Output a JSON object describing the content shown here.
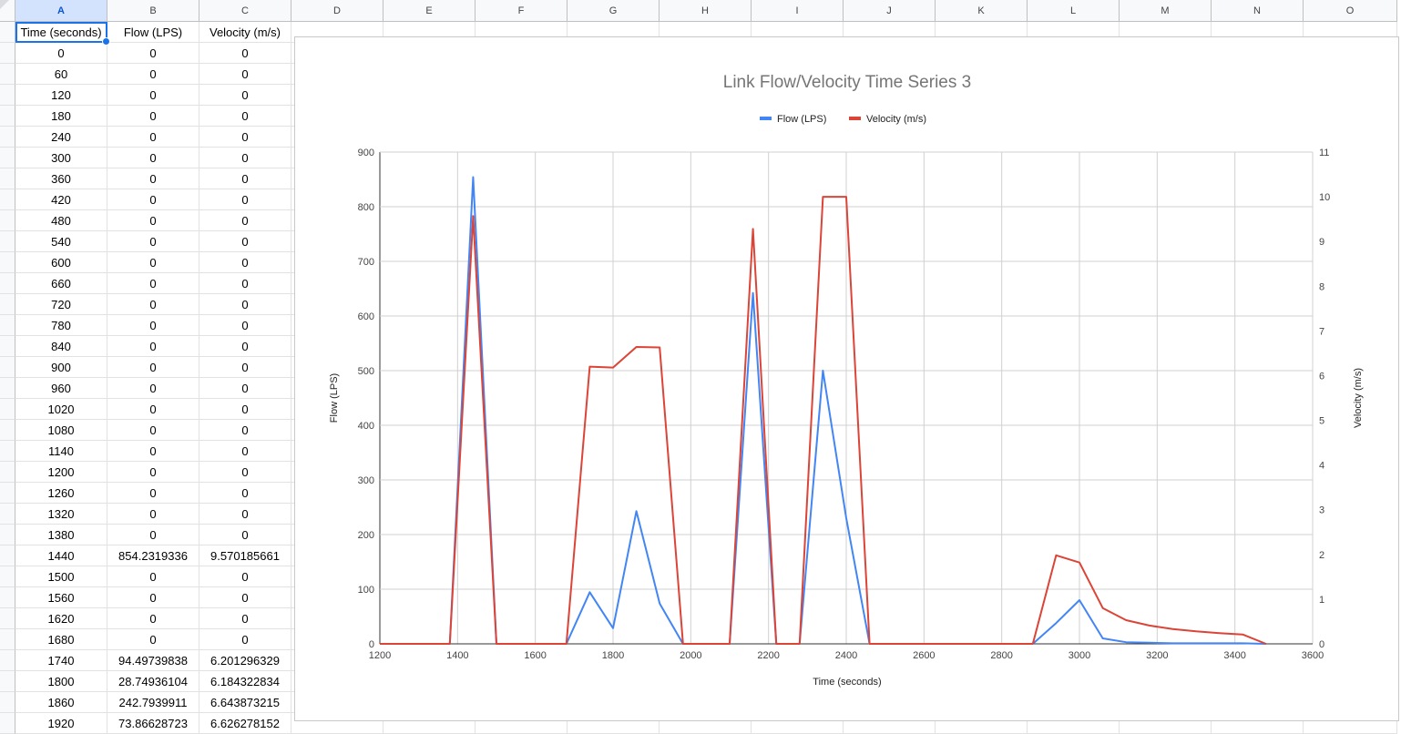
{
  "sheet": {
    "columns": [
      "A",
      "B",
      "C",
      "D",
      "E",
      "F",
      "G",
      "H",
      "I",
      "J",
      "K",
      "L",
      "M",
      "N",
      "O"
    ],
    "header_row": [
      "Time (seconds)",
      "Flow (LPS)",
      "Velocity (m/s)"
    ],
    "rows": [
      [
        "0",
        "0",
        "0"
      ],
      [
        "60",
        "0",
        "0"
      ],
      [
        "120",
        "0",
        "0"
      ],
      [
        "180",
        "0",
        "0"
      ],
      [
        "240",
        "0",
        "0"
      ],
      [
        "300",
        "0",
        "0"
      ],
      [
        "360",
        "0",
        "0"
      ],
      [
        "420",
        "0",
        "0"
      ],
      [
        "480",
        "0",
        "0"
      ],
      [
        "540",
        "0",
        "0"
      ],
      [
        "600",
        "0",
        "0"
      ],
      [
        "660",
        "0",
        "0"
      ],
      [
        "720",
        "0",
        "0"
      ],
      [
        "780",
        "0",
        "0"
      ],
      [
        "840",
        "0",
        "0"
      ],
      [
        "900",
        "0",
        "0"
      ],
      [
        "960",
        "0",
        "0"
      ],
      [
        "1020",
        "0",
        "0"
      ],
      [
        "1080",
        "0",
        "0"
      ],
      [
        "1140",
        "0",
        "0"
      ],
      [
        "1200",
        "0",
        "0"
      ],
      [
        "1260",
        "0",
        "0"
      ],
      [
        "1320",
        "0",
        "0"
      ],
      [
        "1380",
        "0",
        "0"
      ],
      [
        "1440",
        "854.2319336",
        "9.570185661"
      ],
      [
        "1500",
        "0",
        "0"
      ],
      [
        "1560",
        "0",
        "0"
      ],
      [
        "1620",
        "0",
        "0"
      ],
      [
        "1680",
        "0",
        "0"
      ],
      [
        "1740",
        "94.49739838",
        "6.201296329"
      ],
      [
        "1800",
        "28.74936104",
        "6.184322834"
      ],
      [
        "1860",
        "242.7939911",
        "6.643873215"
      ],
      [
        "1920",
        "73.86628723",
        "6.626278152"
      ]
    ]
  },
  "chart_data": {
    "type": "line",
    "title": "Link Flow/Velocity Time Series 3",
    "xlabel": "Time (seconds)",
    "ylabel_left": "Flow (LPS)",
    "ylabel_right": "Velocity (m/s)",
    "xlim": [
      1200,
      3600
    ],
    "ylim_left": [
      0,
      900
    ],
    "ylim_right": [
      0,
      11
    ],
    "x_ticks": [
      "1200",
      "1400",
      "1600",
      "1800",
      "2000",
      "2200",
      "2400",
      "2600",
      "2800",
      "3000",
      "3200",
      "3400",
      "3600"
    ],
    "y_ticks_left": [
      "0",
      "100",
      "200",
      "300",
      "400",
      "500",
      "600",
      "700",
      "800",
      "900"
    ],
    "y_ticks_right": [
      "0",
      "1",
      "2",
      "3",
      "4",
      "5",
      "6",
      "7",
      "8",
      "9",
      "10",
      "11"
    ],
    "grid": true,
    "legend_position": "top-center",
    "series": [
      {
        "name": "Flow (LPS)",
        "axis": "left",
        "color": "#4285f4",
        "x": [
          1200,
          1380,
          1440,
          1500,
          1680,
          1740,
          1800,
          1860,
          1920,
          1980,
          2100,
          2160,
          2220,
          2280,
          2340,
          2400,
          2460,
          2880,
          2940,
          3000,
          3060,
          3120,
          3180,
          3240,
          3300,
          3360,
          3420,
          3480
        ],
        "y": [
          0,
          0,
          854.2,
          0,
          0,
          94.5,
          28.7,
          242.8,
          73.9,
          0,
          0,
          642,
          0,
          0,
          500,
          230,
          0,
          0,
          38,
          80,
          10,
          3,
          2,
          1,
          1,
          1,
          1,
          0
        ]
      },
      {
        "name": "Velocity (m/s)",
        "axis": "right",
        "color": "#db4437",
        "x": [
          1200,
          1380,
          1440,
          1500,
          1680,
          1740,
          1800,
          1860,
          1920,
          1980,
          2100,
          2160,
          2220,
          2280,
          2340,
          2400,
          2460,
          2880,
          2940,
          3000,
          3060,
          3120,
          3180,
          3240,
          3300,
          3360,
          3420,
          3480
        ],
        "y": [
          0,
          0,
          9.57,
          0,
          0,
          6.2,
          6.18,
          6.64,
          6.63,
          0,
          0,
          9.28,
          0,
          0,
          10.0,
          10.0,
          0,
          0,
          1.98,
          1.82,
          0.8,
          0.53,
          0.41,
          0.33,
          0.28,
          0.24,
          0.21,
          0
        ]
      }
    ]
  }
}
